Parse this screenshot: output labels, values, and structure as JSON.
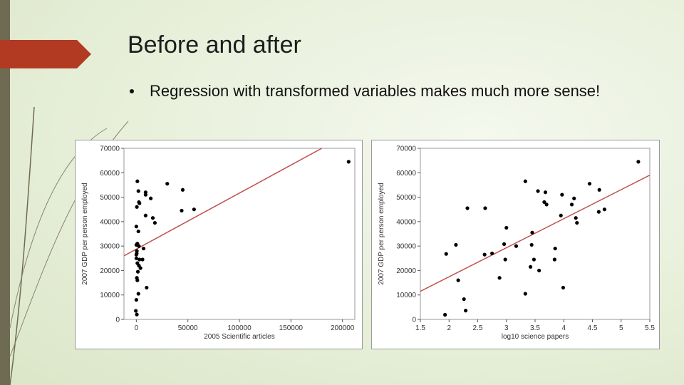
{
  "slide": {
    "title": "Before and after",
    "bullet": "Regression with transformed variables makes much more sense!"
  },
  "colors": {
    "accent": "#b33a22",
    "regression_line": "#c0504d",
    "points": "#000000",
    "left_bar": "#6f6a52"
  },
  "chart_data": [
    {
      "type": "scatter",
      "xlabel": "2005 Scientific articles",
      "ylabel": "2007 GDP per person employed",
      "xlim": [
        -12000,
        212000
      ],
      "ylim": [
        0,
        70000
      ],
      "xticks": [
        0,
        50000,
        100000,
        150000,
        200000
      ],
      "yticks": [
        0,
        10000,
        20000,
        30000,
        40000,
        50000,
        60000,
        70000
      ],
      "grid": false,
      "regression_line": {
        "x": [
          -12000,
          180000
        ],
        "y": [
          26000,
          70000
        ]
      },
      "points": [
        [
          1000,
          56500
        ],
        [
          2000,
          52500
        ],
        [
          3000,
          47500
        ],
        [
          2500,
          48000
        ],
        [
          500,
          46000
        ],
        [
          9000,
          52000
        ],
        [
          9000,
          51000
        ],
        [
          14000,
          49500
        ],
        [
          30000,
          55500
        ],
        [
          45000,
          53000
        ],
        [
          44000,
          44500
        ],
        [
          56000,
          45000
        ],
        [
          9000,
          42500
        ],
        [
          16000,
          41500
        ],
        [
          18000,
          39500
        ],
        [
          0,
          38000
        ],
        [
          2000,
          36000
        ],
        [
          1000,
          31000
        ],
        [
          2500,
          30000
        ],
        [
          7000,
          29000
        ],
        [
          500,
          28000
        ],
        [
          400,
          27000
        ],
        [
          0,
          25000
        ],
        [
          3000,
          24500
        ],
        [
          6000,
          24500
        ],
        [
          1000,
          23000
        ],
        [
          2500,
          22000
        ],
        [
          4000,
          21000
        ],
        [
          1500,
          19500
        ],
        [
          500,
          17000
        ],
        [
          1000,
          16000
        ],
        [
          10000,
          13000
        ],
        [
          2000,
          10500
        ],
        [
          0,
          8000
        ],
        [
          -500,
          3500
        ],
        [
          500,
          2000
        ],
        [
          0,
          30500
        ],
        [
          0,
          26500
        ],
        [
          206000,
          64500
        ]
      ]
    },
    {
      "type": "scatter",
      "xlabel": "log10 science papers",
      "ylabel": "2007 GDP per person employed",
      "xlim": [
        1.5,
        5.5
      ],
      "ylim": [
        0,
        70000
      ],
      "xticks": [
        "1.5",
        "2",
        "2.5",
        "3",
        "3.5",
        "4",
        "4.5",
        "5",
        "5.5"
      ],
      "yticks": [
        0,
        10000,
        20000,
        30000,
        40000,
        50000,
        60000,
        70000
      ],
      "grid": false,
      "regression_line": {
        "x": [
          1.5,
          5.5
        ],
        "y": [
          11500,
          59000
        ]
      },
      "points": [
        [
          1.95,
          26800
        ],
        [
          2.12,
          30500
        ],
        [
          2.16,
          16000
        ],
        [
          2.26,
          8300
        ],
        [
          2.32,
          45500
        ],
        [
          2.29,
          3600
        ],
        [
          1.93,
          1900
        ],
        [
          2.62,
          26500
        ],
        [
          2.63,
          45500
        ],
        [
          2.75,
          27000
        ],
        [
          2.88,
          17000
        ],
        [
          2.96,
          30800
        ],
        [
          3.0,
          37500
        ],
        [
          2.98,
          24500
        ],
        [
          3.17,
          30000
        ],
        [
          3.33,
          56500
        ],
        [
          3.45,
          35500
        ],
        [
          3.44,
          30500
        ],
        [
          3.48,
          24500
        ],
        [
          3.42,
          21500
        ],
        [
          3.57,
          20000
        ],
        [
          3.55,
          52500
        ],
        [
          3.68,
          52000
        ],
        [
          3.66,
          48000
        ],
        [
          3.7,
          47000
        ],
        [
          3.84,
          24500
        ],
        [
          3.85,
          29000
        ],
        [
          3.95,
          42500
        ],
        [
          3.97,
          51000
        ],
        [
          4.14,
          47000
        ],
        [
          4.18,
          49500
        ],
        [
          4.21,
          41500
        ],
        [
          4.23,
          39500
        ],
        [
          4.45,
          55500
        ],
        [
          4.62,
          53000
        ],
        [
          4.61,
          44000
        ],
        [
          4.71,
          45000
        ],
        [
          3.33,
          10500
        ],
        [
          3.99,
          13000
        ],
        [
          5.3,
          64500
        ]
      ]
    }
  ]
}
